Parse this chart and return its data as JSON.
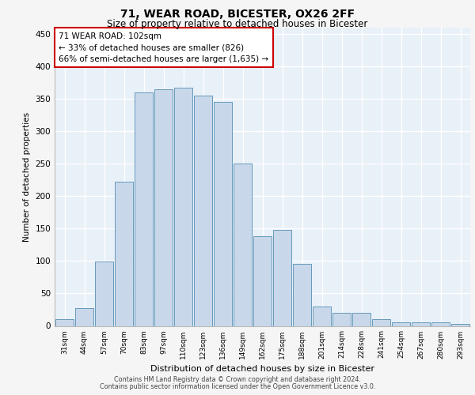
{
  "title_line1": "71, WEAR ROAD, BICESTER, OX26 2FF",
  "title_line2": "Size of property relative to detached houses in Bicester",
  "xlabel": "Distribution of detached houses by size in Bicester",
  "ylabel": "Number of detached properties",
  "categories": [
    "31sqm",
    "44sqm",
    "57sqm",
    "70sqm",
    "83sqm",
    "97sqm",
    "110sqm",
    "123sqm",
    "136sqm",
    "149sqm",
    "162sqm",
    "175sqm",
    "188sqm",
    "201sqm",
    "214sqm",
    "228sqm",
    "241sqm",
    "254sqm",
    "267sqm",
    "280sqm",
    "293sqm"
  ],
  "values": [
    10,
    27,
    99,
    222,
    360,
    365,
    368,
    355,
    345,
    250,
    138,
    148,
    96,
    30,
    20,
    20,
    10,
    5,
    5,
    5,
    3
  ],
  "bar_color": "#c8d8ea",
  "bar_edge_color": "#6699bb",
  "annotation_text": "71 WEAR ROAD: 102sqm\n← 33% of detached houses are smaller (826)\n66% of semi-detached houses are larger (1,635) →",
  "annotation_box_color": "#ffffff",
  "annotation_box_edge": "#cc0000",
  "ylim": [
    0,
    460
  ],
  "yticks": [
    0,
    50,
    100,
    150,
    200,
    250,
    300,
    350,
    400,
    450
  ],
  "footer_line1": "Contains HM Land Registry data © Crown copyright and database right 2024.",
  "footer_line2": "Contains public sector information licensed under the Open Government Licence v3.0.",
  "bg_color": "#e8f0f8",
  "grid_color": "#ffffff",
  "fig_bg_color": "#f5f5f5"
}
